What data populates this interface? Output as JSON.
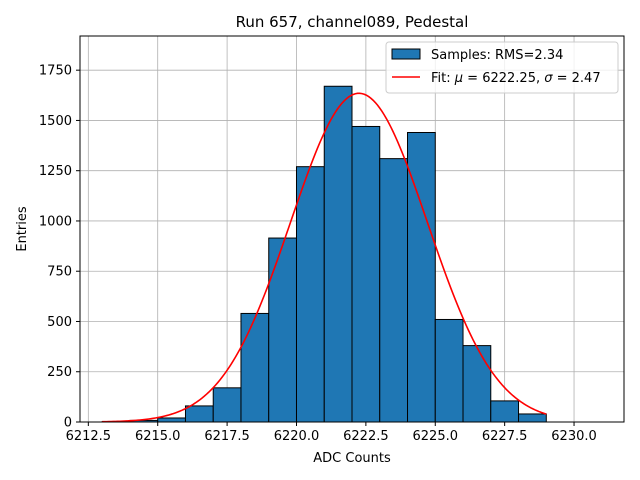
{
  "chart_data": {
    "type": "bar",
    "title": "Run 657, channel089, Pedestal",
    "xlabel": "ADC Counts",
    "ylabel": "Entries",
    "xlim": [
      6212.2,
      6231.8
    ],
    "ylim": [
      0,
      1920
    ],
    "grid": true,
    "legend_position": "top-right",
    "xticks": [
      6212.5,
      6215.0,
      6217.5,
      6220.0,
      6222.5,
      6225.0,
      6227.5,
      6230.0
    ],
    "xtick_labels": [
      "6212.5",
      "6215.0",
      "6217.5",
      "6220.0",
      "6222.5",
      "6225.0",
      "6227.5",
      "6230.0"
    ],
    "yticks": [
      0,
      250,
      500,
      750,
      1000,
      1250,
      1500,
      1750
    ],
    "ytick_labels": [
      "0",
      "250",
      "500",
      "750",
      "1000",
      "1250",
      "1500",
      "1750"
    ],
    "bins": [
      {
        "x0": 6213.0,
        "x1": 6214.0,
        "value": 2
      },
      {
        "x0": 6214.0,
        "x1": 6215.0,
        "value": 8
      },
      {
        "x0": 6215.0,
        "x1": 6216.0,
        "value": 20
      },
      {
        "x0": 6216.0,
        "x1": 6217.0,
        "value": 80
      },
      {
        "x0": 6217.0,
        "x1": 6218.0,
        "value": 170
      },
      {
        "x0": 6218.0,
        "x1": 6219.0,
        "value": 540
      },
      {
        "x0": 6219.0,
        "x1": 6220.0,
        "value": 915
      },
      {
        "x0": 6220.0,
        "x1": 6221.0,
        "value": 1270
      },
      {
        "x0": 6221.0,
        "x1": 6222.0,
        "value": 1670
      },
      {
        "x0": 6222.0,
        "x1": 6223.0,
        "value": 1470
      },
      {
        "x0": 6223.0,
        "x1": 6224.0,
        "value": 1310
      },
      {
        "x0": 6224.0,
        "x1": 6225.0,
        "value": 1440
      },
      {
        "x0": 6225.0,
        "x1": 6226.0,
        "value": 510
      },
      {
        "x0": 6226.0,
        "x1": 6227.0,
        "value": 380
      },
      {
        "x0": 6227.0,
        "x1": 6228.0,
        "value": 105
      },
      {
        "x0": 6228.0,
        "x1": 6229.0,
        "value": 40
      }
    ],
    "fit": {
      "type": "gaussian",
      "mu": 6222.25,
      "sigma": 2.47,
      "amplitude": 1635,
      "x_range": [
        6213.0,
        6229.0
      ]
    },
    "series": [
      {
        "name": "Samples: RMS=2.34",
        "kind": "histogram",
        "color": "#1f77b4",
        "edgecolor": "#000000"
      },
      {
        "name_prefix": "Fit: ",
        "name_mu": "μ",
        "name_mid": " = 6222.25, ",
        "name_sigma": "σ",
        "name_suffix": " = 2.47",
        "kind": "line",
        "color": "#ff0000"
      }
    ]
  }
}
